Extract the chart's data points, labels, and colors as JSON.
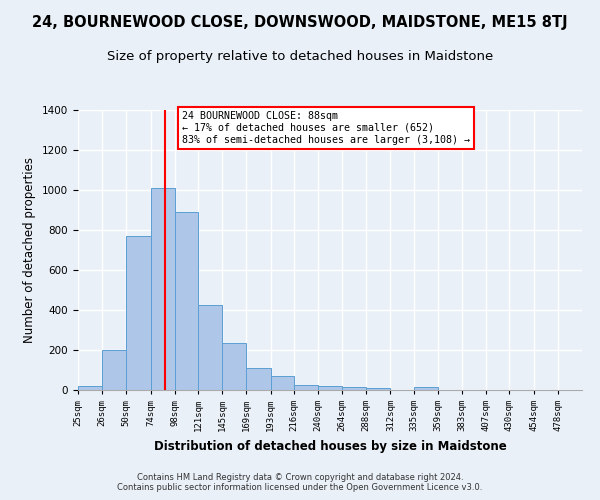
{
  "title": "24, BOURNEWOOD CLOSE, DOWNSWOOD, MAIDSTONE, ME15 8TJ",
  "subtitle": "Size of property relative to detached houses in Maidstone",
  "xlabel": "Distribution of detached houses by size in Maidstone",
  "ylabel": "Number of detached properties",
  "footer_line1": "Contains HM Land Registry data © Crown copyright and database right 2024.",
  "footer_line2": "Contains public sector information licensed under the Open Government Licence v3.0.",
  "categories": [
    "25sqm",
    "26sqm",
    "50sqm",
    "74sqm",
    "98sqm",
    "121sqm",
    "145sqm",
    "169sqm",
    "193sqm",
    "216sqm",
    "240sqm",
    "264sqm",
    "288sqm",
    "312sqm",
    "335sqm",
    "359sqm",
    "383sqm",
    "407sqm",
    "430sqm",
    "454sqm",
    "478sqm"
  ],
  "bar_values": [
    20,
    200,
    770,
    1010,
    890,
    425,
    235,
    110,
    70,
    25,
    20,
    15,
    10,
    0,
    15,
    0,
    0,
    0,
    0,
    0,
    0
  ],
  "bar_color": "#aec6e8",
  "bar_edge_color": "#5a9fd4",
  "property_line_x": 88,
  "annotation_text": "24 BOURNEWOOD CLOSE: 88sqm\n← 17% of detached houses are smaller (652)\n83% of semi-detached houses are larger (3,108) →",
  "annotation_box_color": "white",
  "annotation_box_edge_color": "red",
  "annotation_line_color": "red",
  "ylim": [
    0,
    1400
  ],
  "yticks": [
    0,
    200,
    400,
    600,
    800,
    1000,
    1200,
    1400
  ],
  "background_color": "#eaf0f8",
  "grid_color": "white",
  "title_fontsize": 10.5,
  "subtitle_fontsize": 9.5,
  "xlabel_fontsize": 8.5,
  "ylabel_fontsize": 8.5,
  "bin_edges": [
    2,
    26,
    50,
    74,
    98,
    121,
    145,
    169,
    193,
    216,
    240,
    264,
    288,
    312,
    335,
    359,
    383,
    407,
    430,
    454,
    478,
    502
  ]
}
